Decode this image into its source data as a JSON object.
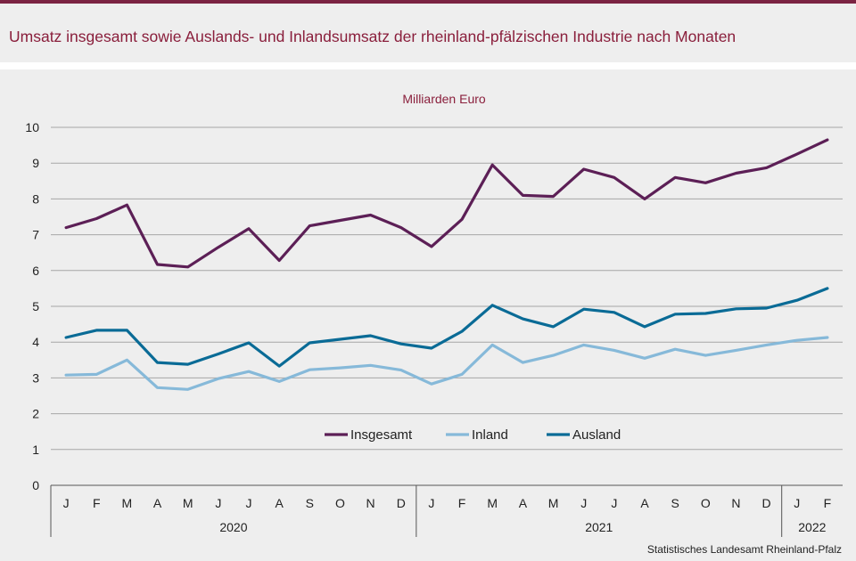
{
  "title": "Umsatz insgesamt sowie Auslands- und Inlandsumsatz der rheinland-pfälzischen Industrie nach Monaten",
  "source": "Statistisches Landesamt  Rheinland-Pfalz",
  "colors": {
    "header_bar": "#7b2342",
    "title": "#8a1f3c"
  },
  "chart_data": {
    "type": "line",
    "unit_label": "Milliarden Euro",
    "categories": [
      "J",
      "F",
      "M",
      "A",
      "M",
      "J",
      "J",
      "A",
      "S",
      "O",
      "N",
      "D",
      "J",
      "F",
      "M",
      "A",
      "M",
      "J",
      "J",
      "A",
      "S",
      "O",
      "N",
      "D",
      "J",
      "F"
    ],
    "year_groups": [
      {
        "label": "2020",
        "count": 12
      },
      {
        "label": "2021",
        "count": 12
      },
      {
        "label": "2022",
        "count": 2
      }
    ],
    "ylim": [
      0,
      10
    ],
    "yticks": [
      0,
      1,
      2,
      3,
      4,
      5,
      6,
      7,
      8,
      9,
      10
    ],
    "grid": true,
    "legend_position": "bottom-center",
    "series": [
      {
        "name": "Insgesamt",
        "color": "#5c1f56",
        "values": [
          7.2,
          7.45,
          7.83,
          6.17,
          6.1,
          6.65,
          7.17,
          6.28,
          7.25,
          7.4,
          7.55,
          7.2,
          6.67,
          7.43,
          8.95,
          8.1,
          8.07,
          8.83,
          8.6,
          8.0,
          8.6,
          8.45,
          8.72,
          8.87,
          9.25,
          9.65
        ]
      },
      {
        "name": "Inland",
        "color": "#86b9d9",
        "values": [
          3.08,
          3.1,
          3.5,
          2.73,
          2.68,
          2.98,
          3.18,
          2.9,
          3.23,
          3.28,
          3.35,
          3.22,
          2.83,
          3.1,
          3.92,
          3.43,
          3.63,
          3.92,
          3.77,
          3.55,
          3.8,
          3.63,
          3.77,
          3.92,
          4.05,
          4.13
        ]
      },
      {
        "name": "Ausland",
        "color": "#0a6b96",
        "values": [
          4.13,
          4.33,
          4.33,
          3.43,
          3.38,
          3.67,
          3.98,
          3.33,
          3.98,
          4.08,
          4.18,
          3.95,
          3.83,
          4.3,
          5.03,
          4.65,
          4.43,
          4.92,
          4.83,
          4.43,
          4.78,
          4.8,
          4.93,
          4.95,
          5.17,
          5.5
        ]
      }
    ]
  }
}
